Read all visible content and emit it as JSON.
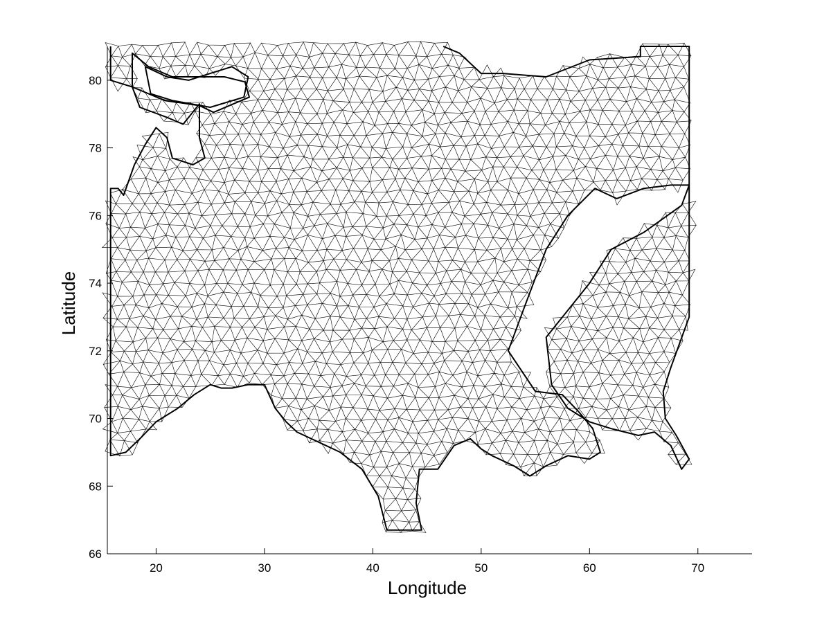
{
  "figure": {
    "xlabel": "Longitude",
    "ylabel": "Latitude",
    "xlim": [
      15.5,
      75
    ],
    "ylim": [
      66,
      81
    ],
    "xticks": [
      20,
      30,
      40,
      50,
      60,
      70
    ],
    "yticks": [
      66,
      68,
      70,
      72,
      74,
      76,
      78,
      80
    ],
    "mesh": "triangular finite-element mesh of a sea region (Barents/Kara Sea), black edges on white"
  },
  "chart_data": {
    "type": "mesh",
    "xlabel": "Longitude",
    "ylabel": "Latitude",
    "xlim": [
      15.5,
      75
    ],
    "ylim": [
      66,
      81
    ],
    "grid": false,
    "domain_outline": [
      [
        15.8,
        81
      ],
      [
        15.8,
        80
      ],
      [
        17.8,
        79.8
      ],
      [
        17.8,
        80.8
      ],
      [
        19.3,
        80.4
      ],
      [
        21.5,
        80.1
      ],
      [
        24.0,
        80.1
      ],
      [
        26.3,
        80.1
      ],
      [
        28.2,
        79.95
      ],
      [
        28.6,
        79.5
      ],
      [
        25.3,
        79.05
      ],
      [
        24.0,
        79.25
      ],
      [
        20.8,
        79.4
      ],
      [
        17.8,
        79.8
      ],
      [
        18.5,
        79.2
      ],
      [
        21.0,
        78.9
      ],
      [
        22.5,
        78.7
      ],
      [
        24.0,
        79.3
      ],
      [
        24.0,
        78.3
      ],
      [
        24.5,
        77.7
      ],
      [
        23.4,
        77.5
      ],
      [
        21.5,
        77.7
      ],
      [
        21.0,
        78.3
      ],
      [
        20.0,
        78.6
      ],
      [
        19.0,
        78.1
      ],
      [
        18.0,
        77.5
      ],
      [
        17.0,
        76.6
      ],
      [
        16.5,
        76.8
      ],
      [
        15.8,
        76.8
      ],
      [
        15.8,
        68.9
      ],
      [
        17.2,
        69.0
      ],
      [
        18.5,
        69.4
      ],
      [
        20.0,
        69.9
      ],
      [
        22.0,
        70.3
      ],
      [
        23.5,
        70.7
      ],
      [
        25.0,
        71.0
      ],
      [
        26.0,
        70.9
      ],
      [
        27.0,
        70.9
      ],
      [
        28.5,
        71.0
      ],
      [
        30.0,
        71.0
      ],
      [
        31.0,
        70.3
      ],
      [
        32.0,
        69.9
      ],
      [
        33.0,
        69.6
      ],
      [
        35.0,
        69.3
      ],
      [
        37.0,
        69.0
      ],
      [
        39.0,
        68.5
      ],
      [
        40.5,
        67.7
      ],
      [
        41.3,
        66.7
      ],
      [
        44.5,
        66.7
      ],
      [
        44.0,
        67.5
      ],
      [
        44.3,
        68.5
      ],
      [
        46.0,
        68.5
      ],
      [
        47.5,
        69.2
      ],
      [
        49.0,
        69.4
      ],
      [
        50.0,
        69.1
      ],
      [
        51.0,
        68.9
      ],
      [
        53.0,
        68.6
      ],
      [
        54.5,
        68.3
      ],
      [
        56.0,
        68.6
      ],
      [
        58.0,
        68.9
      ],
      [
        60.0,
        68.8
      ],
      [
        61.0,
        69.0
      ],
      [
        60.3,
        69.7
      ],
      [
        59.0,
        70.2
      ],
      [
        57.5,
        70.7
      ],
      [
        55.0,
        70.8
      ],
      [
        52.5,
        72.0
      ],
      [
        54.0,
        73.3
      ],
      [
        56.0,
        75.0
      ],
      [
        58.0,
        76.0
      ],
      [
        60.5,
        76.8
      ],
      [
        62.5,
        76.5
      ],
      [
        65.0,
        76.8
      ],
      [
        67.5,
        76.9
      ],
      [
        69.2,
        76.9
      ],
      [
        68.5,
        76.3
      ],
      [
        65.0,
        75.5
      ],
      [
        62.0,
        75.0
      ],
      [
        60.0,
        74.0
      ],
      [
        58.0,
        73.2
      ],
      [
        56.0,
        72.4
      ],
      [
        56.5,
        71.0
      ],
      [
        58.0,
        70.3
      ],
      [
        60.0,
        69.9
      ],
      [
        62.0,
        69.7
      ],
      [
        64.5,
        69.5
      ],
      [
        66.0,
        69.6
      ],
      [
        67.5,
        69.2
      ],
      [
        68.5,
        68.5
      ],
      [
        69.2,
        68.8
      ],
      [
        68.0,
        69.5
      ],
      [
        67.0,
        70.0
      ],
      [
        66.8,
        70.8
      ],
      [
        67.5,
        71.5
      ],
      [
        69.2,
        73.0
      ],
      [
        69.2,
        81
      ],
      [
        64.7,
        81
      ],
      [
        64.7,
        80.7
      ],
      [
        60.0,
        80.6
      ],
      [
        56.0,
        80.1
      ],
      [
        52.0,
        80.2
      ],
      [
        50.0,
        80.2
      ],
      [
        48.0,
        80.8
      ],
      [
        46.5,
        81
      ]
    ],
    "islands": [
      [
        [
          19.0,
          80.4
        ],
        [
          21.0,
          80.1
        ],
        [
          23.0,
          80.0
        ],
        [
          25.0,
          80.2
        ],
        [
          27.0,
          80.4
        ],
        [
          28.5,
          80.1
        ],
        [
          28.1,
          79.5
        ],
        [
          25.0,
          79.2
        ],
        [
          21.5,
          79.4
        ],
        [
          19.5,
          79.6
        ]
      ]
    ]
  }
}
